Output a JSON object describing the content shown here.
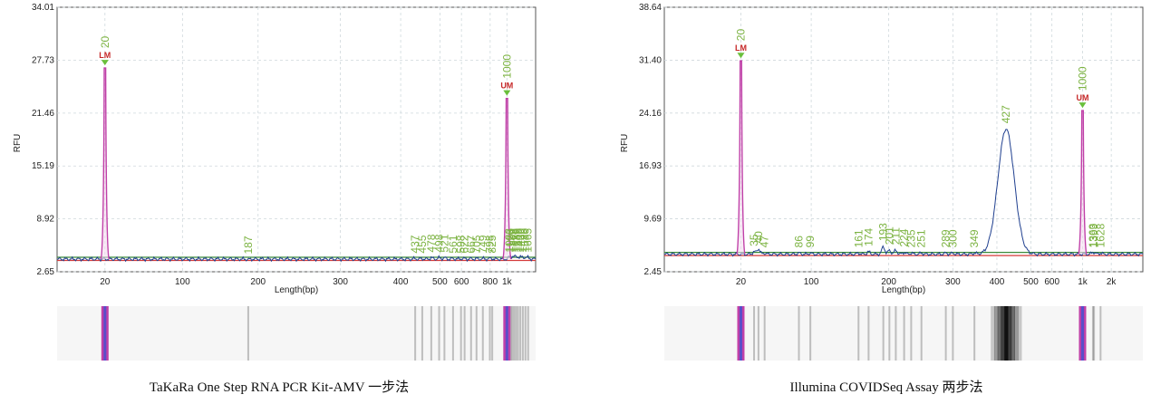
{
  "colors": {
    "marker_peak": "#c040a8",
    "sample_trace": "#1f3f8f",
    "baseline_green": "#3a8a3a",
    "baseline_red": "#d43a3a",
    "peak_label": "#7cb342",
    "marker_label": "#c62828",
    "marker_arrow": "#6abf3b",
    "grid": "#cfd8dc"
  },
  "chart_data": [
    {
      "type": "line",
      "caption": "TaKaRa One Step RNA PCR Kit-AMV 一步法",
      "ylabel": "RFU",
      "xlabel": "Length(bp)",
      "ylim": [
        2.65,
        34.01
      ],
      "yticks": [
        "2.65",
        "8.92",
        "15.19",
        "21.46",
        "27.73",
        "34.01"
      ],
      "xticks": [
        "20",
        "100",
        "200",
        "300",
        "400",
        "500",
        "600",
        "800",
        "1k"
      ],
      "markers": [
        {
          "label": "LM",
          "size": "20",
          "rfu": 26.8
        },
        {
          "label": "UM",
          "size": "1000",
          "rfu": 23.2
        }
      ],
      "peaks": [
        {
          "size": "187",
          "rfu": 4.1
        },
        {
          "size": "437",
          "rfu": 4.2
        },
        {
          "size": "455",
          "rfu": 4.2
        },
        {
          "size": "478",
          "rfu": 4.3
        },
        {
          "size": "498",
          "rfu": 4.3
        },
        {
          "size": "521",
          "rfu": 4.3
        },
        {
          "size": "561",
          "rfu": 4.2
        },
        {
          "size": "598",
          "rfu": 4.2
        },
        {
          "size": "622",
          "rfu": 4.2
        },
        {
          "size": "667",
          "rfu": 4.2
        },
        {
          "size": "705",
          "rfu": 4.2
        },
        {
          "size": "749",
          "rfu": 4.2
        },
        {
          "size": "798",
          "rfu": 4.2
        },
        {
          "size": "825",
          "rfu": 4.2
        },
        {
          "size": "1083",
          "rfu": 4.3
        },
        {
          "size": "1126",
          "rfu": 4.3
        },
        {
          "size": "1172",
          "rfu": 4.3
        },
        {
          "size": "1228",
          "rfu": 4.3
        },
        {
          "size": "1288",
          "rfu": 4.3
        },
        {
          "size": "1349",
          "rfu": 4.3
        },
        {
          "size": "1420",
          "rfu": 4.3
        },
        {
          "size": "1499",
          "rfu": 4.3
        },
        {
          "size": "1580",
          "rfu": 4.3
        },
        {
          "size": "1665",
          "rfu": 4.3
        }
      ]
    },
    {
      "type": "line",
      "caption": "Illumina COVIDSeq Assay 两步法",
      "ylabel": "RFU",
      "xlabel": "Length(bp)",
      "ylim": [
        2.45,
        38.64
      ],
      "yticks": [
        "2.45",
        "9.69",
        "16.93",
        "24.16",
        "31.40",
        "38.64"
      ],
      "xticks": [
        "20",
        "100",
        "200",
        "300",
        "400",
        "500",
        "600",
        "1k",
        "2k"
      ],
      "markers": [
        {
          "label": "LM",
          "size": "20",
          "rfu": 31.3
        },
        {
          "label": "UM",
          "size": "1000",
          "rfu": 24.5
        }
      ],
      "peaks": [
        {
          "size": "35",
          "rfu": 5.2
        },
        {
          "size": "40",
          "rfu": 5.6
        },
        {
          "size": "47",
          "rfu": 5.0
        },
        {
          "size": "86",
          "rfu": 5.0
        },
        {
          "size": "99",
          "rfu": 5.0
        },
        {
          "size": "161",
          "rfu": 5.0
        },
        {
          "size": "174",
          "rfu": 5.2
        },
        {
          "size": "193",
          "rfu": 5.9
        },
        {
          "size": "201",
          "rfu": 5.4
        },
        {
          "size": "211",
          "rfu": 5.4
        },
        {
          "size": "224",
          "rfu": 5.1
        },
        {
          "size": "235",
          "rfu": 5.0
        },
        {
          "size": "251",
          "rfu": 5.0
        },
        {
          "size": "289",
          "rfu": 5.0
        },
        {
          "size": "300",
          "rfu": 5.0
        },
        {
          "size": "349",
          "rfu": 5.0
        },
        {
          "size": "427",
          "rfu": 22.0
        },
        {
          "size": "1363",
          "rfu": 5.0
        },
        {
          "size": "1399",
          "rfu": 5.0
        },
        {
          "size": "1628",
          "rfu": 5.0
        }
      ]
    }
  ]
}
